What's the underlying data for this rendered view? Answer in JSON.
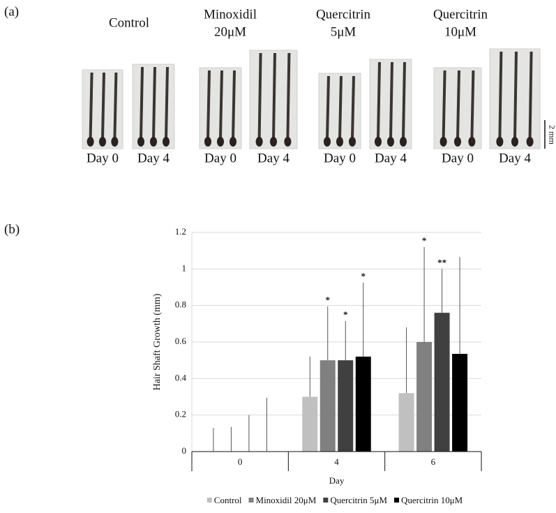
{
  "panel_a": {
    "label": "(a)",
    "groups": [
      {
        "lines": [
          "Control"
        ],
        "days": [
          "Day 0",
          "Day 4"
        ]
      },
      {
        "lines": [
          "Minoxidil",
          "20μM"
        ],
        "days": [
          "Day 0",
          "Day 4"
        ]
      },
      {
        "lines": [
          "Quercitrin",
          "5μM"
        ],
        "days": [
          "Day 0",
          "Day 4"
        ]
      },
      {
        "lines": [
          "Quercitrin",
          "10μM"
        ],
        "days": [
          "Day 0",
          "Day 4"
        ]
      }
    ],
    "scale_bar": "2 mm"
  },
  "panel_b_label": "(b)",
  "chart_data": {
    "type": "bar",
    "xlabel": "Day",
    "ylabel": "Hair Shaft Growth (mm)",
    "categories": [
      "0",
      "4",
      "6"
    ],
    "ylim": [
      0,
      1.2
    ],
    "yticks": [
      0,
      0.2,
      0.4,
      0.6,
      0.8,
      1,
      1.2
    ],
    "grid": true,
    "series": [
      {
        "name": "Control",
        "color": "#c0c0c0",
        "values": [
          0,
          0.3,
          0.32
        ],
        "errors": [
          0.13,
          0.22,
          0.36
        ]
      },
      {
        "name": "Minoxidil 20μM",
        "color": "#808080",
        "values": [
          0,
          0.5,
          0.6
        ],
        "errors": [
          0.135,
          0.295,
          0.52
        ],
        "significance": [
          null,
          "*",
          "*"
        ]
      },
      {
        "name": "Quercitrin 5μM",
        "color": "#404040",
        "values": [
          0,
          0.5,
          0.76
        ],
        "errors": [
          0.2,
          0.215,
          0.24
        ],
        "significance": [
          null,
          "*",
          "**"
        ]
      },
      {
        "name": "Quercitrin 10μM",
        "color": "#000000",
        "values": [
          0,
          0.52,
          0.535
        ],
        "errors": [
          0.295,
          0.405,
          0.53
        ],
        "significance": [
          null,
          "*",
          null
        ]
      }
    ]
  }
}
